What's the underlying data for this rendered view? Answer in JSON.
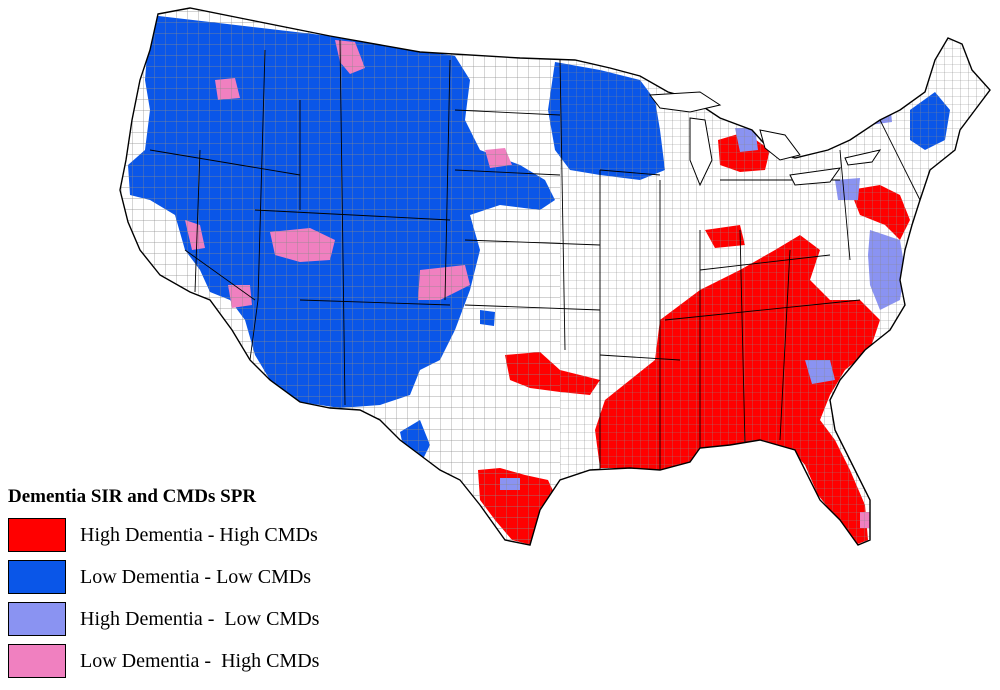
{
  "legend": {
    "title": "Dementia SIR and CMDs SPR",
    "items": [
      {
        "label": "High Dementia - High CMDs",
        "color": "#ff0000"
      },
      {
        "label": "Low Dementia - Low CMDs",
        "color": "#0a56e8"
      },
      {
        "label": "High Dementia -  Low CMDs",
        "color": "#8a93f2"
      },
      {
        "label": "Low Dementia -  High CMDs",
        "color": "#f080c0"
      }
    ]
  },
  "map": {
    "region": "Contiguous United States, county level",
    "county_grid_color": "#7a7a7a",
    "state_border_color": "#000000",
    "background_color": "#ffffff"
  }
}
